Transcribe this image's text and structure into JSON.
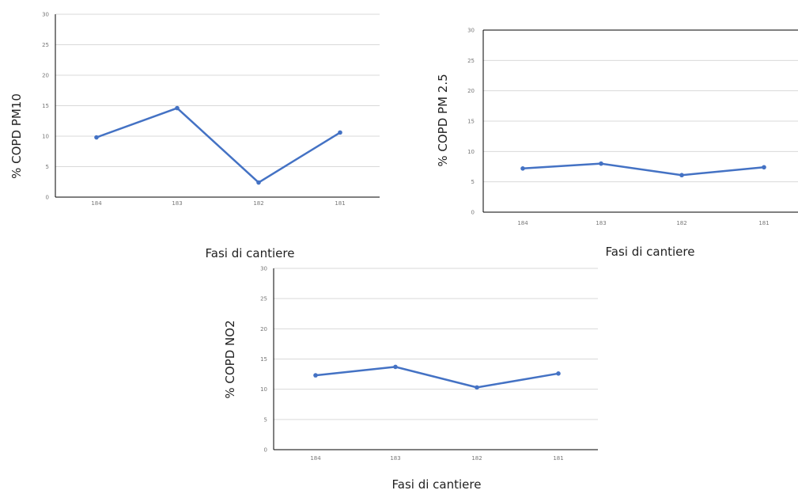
{
  "chart_data": [
    {
      "type": "line",
      "categories": [
        "184",
        "183",
        "182",
        "181"
      ],
      "series": [
        {
          "values": [
            9.8,
            14.6,
            2.4,
            10.6
          ]
        }
      ],
      "title": "",
      "xlabel": "Fasi di cantiere",
      "ylabel": "% COPD PM10",
      "ylim": [
        0,
        30
      ],
      "yticks": [
        0,
        5,
        10,
        15,
        20,
        25,
        30
      ],
      "grid": true,
      "legend": "none"
    },
    {
      "type": "line",
      "categories": [
        "184",
        "183",
        "182",
        "181"
      ],
      "series": [
        {
          "values": [
            7.2,
            8.0,
            6.1,
            7.4
          ]
        }
      ],
      "title": "",
      "xlabel": "Fasi di cantiere",
      "ylabel": "% COPD PM 2.5",
      "ylim": [
        0,
        30
      ],
      "yticks": [
        0,
        5,
        10,
        15,
        20,
        25,
        30
      ],
      "grid": true,
      "legend": "none"
    },
    {
      "type": "line",
      "categories": [
        "184",
        "183",
        "182",
        "181"
      ],
      "series": [
        {
          "values": [
            12.3,
            13.7,
            10.3,
            12.6
          ]
        }
      ],
      "title": "",
      "xlabel": "Fasi di cantiere",
      "ylabel": "% COPD NO2",
      "ylim": [
        0,
        30
      ],
      "yticks": [
        0,
        5,
        10,
        15,
        20,
        25,
        30
      ],
      "grid": true,
      "legend": "none"
    }
  ],
  "colors": {
    "series": "#4472c4",
    "grid": "#d9d9d9",
    "axis": "#000000",
    "tick_text": "#777777"
  }
}
